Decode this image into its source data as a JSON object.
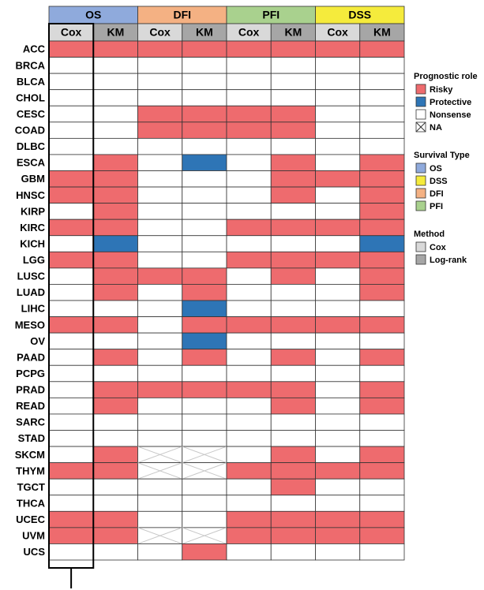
{
  "chart_data": {
    "type": "heatmap",
    "groups": [
      {
        "name": "OS",
        "color": "#8faadc"
      },
      {
        "name": "DFI",
        "color": "#f4b183"
      },
      {
        "name": "PFI",
        "color": "#a9d18e"
      },
      {
        "name": "DSS",
        "color": "#f5eb3c"
      }
    ],
    "methods": [
      {
        "name": "Cox",
        "color": "#d9d9d9"
      },
      {
        "name": "KM",
        "color": "#a6a6a6"
      }
    ],
    "rows": [
      "ACC",
      "BRCA",
      "BLCA",
      "CHOL",
      "CESC",
      "COAD",
      "DLBC",
      "ESCA",
      "GBM",
      "HNSC",
      "KIRP",
      "KIRC",
      "KICH",
      "LGG",
      "LUSC",
      "LUAD",
      "LIHC",
      "MESO",
      "OV",
      "PAAD",
      "PCPG",
      "PRAD",
      "READ",
      "SARC",
      "STAD",
      "SKCM",
      "THYM",
      "TGCT",
      "THCA",
      "UCEC",
      "UVM",
      "UCS"
    ],
    "cells": [
      [
        "Risky",
        "Risky",
        "Risky",
        "Risky",
        "Risky",
        "Risky",
        "Risky",
        "Risky"
      ],
      [
        "Nonsense",
        "Nonsense",
        "Nonsense",
        "Nonsense",
        "Nonsense",
        "Nonsense",
        "Nonsense",
        "Nonsense"
      ],
      [
        "Nonsense",
        "Nonsense",
        "Nonsense",
        "Nonsense",
        "Nonsense",
        "Nonsense",
        "Nonsense",
        "Nonsense"
      ],
      [
        "Nonsense",
        "Nonsense",
        "Nonsense",
        "Nonsense",
        "Nonsense",
        "Nonsense",
        "Nonsense",
        "Nonsense"
      ],
      [
        "Nonsense",
        "Nonsense",
        "Risky",
        "Risky",
        "Risky",
        "Risky",
        "Nonsense",
        "Nonsense"
      ],
      [
        "Nonsense",
        "Nonsense",
        "Risky",
        "Risky",
        "Risky",
        "Risky",
        "Nonsense",
        "Nonsense"
      ],
      [
        "Nonsense",
        "Nonsense",
        "Nonsense",
        "Nonsense",
        "Nonsense",
        "Nonsense",
        "Nonsense",
        "Nonsense"
      ],
      [
        "Nonsense",
        "Risky",
        "Nonsense",
        "Protective",
        "Nonsense",
        "Risky",
        "Nonsense",
        "Risky"
      ],
      [
        "Risky",
        "Risky",
        "Nonsense",
        "Nonsense",
        "Nonsense",
        "Risky",
        "Risky",
        "Risky"
      ],
      [
        "Risky",
        "Risky",
        "Nonsense",
        "Nonsense",
        "Nonsense",
        "Risky",
        "Nonsense",
        "Risky"
      ],
      [
        "Nonsense",
        "Risky",
        "Nonsense",
        "Nonsense",
        "Nonsense",
        "Nonsense",
        "Nonsense",
        "Risky"
      ],
      [
        "Risky",
        "Risky",
        "Nonsense",
        "Nonsense",
        "Risky",
        "Risky",
        "Risky",
        "Risky"
      ],
      [
        "Nonsense",
        "Protective",
        "Nonsense",
        "Nonsense",
        "Nonsense",
        "Nonsense",
        "Nonsense",
        "Protective"
      ],
      [
        "Risky",
        "Risky",
        "Nonsense",
        "Nonsense",
        "Risky",
        "Risky",
        "Risky",
        "Risky"
      ],
      [
        "Nonsense",
        "Risky",
        "Risky",
        "Risky",
        "Nonsense",
        "Risky",
        "Nonsense",
        "Risky"
      ],
      [
        "Nonsense",
        "Risky",
        "Nonsense",
        "Risky",
        "Nonsense",
        "Nonsense",
        "Nonsense",
        "Risky"
      ],
      [
        "Nonsense",
        "Nonsense",
        "Nonsense",
        "Protective",
        "Nonsense",
        "Nonsense",
        "Nonsense",
        "Nonsense"
      ],
      [
        "Risky",
        "Risky",
        "Nonsense",
        "Risky",
        "Risky",
        "Risky",
        "Risky",
        "Risky"
      ],
      [
        "Nonsense",
        "Nonsense",
        "Nonsense",
        "Protective",
        "Nonsense",
        "Nonsense",
        "Nonsense",
        "Nonsense"
      ],
      [
        "Nonsense",
        "Risky",
        "Nonsense",
        "Risky",
        "Nonsense",
        "Risky",
        "Nonsense",
        "Risky"
      ],
      [
        "Nonsense",
        "Nonsense",
        "Nonsense",
        "Nonsense",
        "Nonsense",
        "Nonsense",
        "Nonsense",
        "Nonsense"
      ],
      [
        "Nonsense",
        "Risky",
        "Risky",
        "Risky",
        "Risky",
        "Risky",
        "Nonsense",
        "Risky"
      ],
      [
        "Nonsense",
        "Risky",
        "Nonsense",
        "Nonsense",
        "Nonsense",
        "Risky",
        "Nonsense",
        "Risky"
      ],
      [
        "Nonsense",
        "Nonsense",
        "Nonsense",
        "Nonsense",
        "Nonsense",
        "Nonsense",
        "Nonsense",
        "Nonsense"
      ],
      [
        "Nonsense",
        "Nonsense",
        "Nonsense",
        "Nonsense",
        "Nonsense",
        "Nonsense",
        "Nonsense",
        "Nonsense"
      ],
      [
        "Nonsense",
        "Risky",
        "NA",
        "NA",
        "Nonsense",
        "Risky",
        "Nonsense",
        "Risky"
      ],
      [
        "Risky",
        "Risky",
        "NA",
        "NA",
        "Risky",
        "Risky",
        "Risky",
        "Risky"
      ],
      [
        "Nonsense",
        "Nonsense",
        "Nonsense",
        "Nonsense",
        "Nonsense",
        "Risky",
        "Nonsense",
        "Nonsense"
      ],
      [
        "Nonsense",
        "Nonsense",
        "Nonsense",
        "Nonsense",
        "Nonsense",
        "Nonsense",
        "Nonsense",
        "Nonsense"
      ],
      [
        "Risky",
        "Risky",
        "Nonsense",
        "Nonsense",
        "Risky",
        "Risky",
        "Risky",
        "Risky"
      ],
      [
        "Risky",
        "Risky",
        "NA",
        "NA",
        "Risky",
        "Risky",
        "Risky",
        "Risky"
      ],
      [
        "Nonsense",
        "Nonsense",
        "Nonsense",
        "Risky",
        "Nonsense",
        "Nonsense",
        "Nonsense",
        "Nonsense"
      ]
    ],
    "legend": [
      {
        "title": "Prognostic role",
        "items": [
          {
            "label": "Risky",
            "color": "#ee6b6e"
          },
          {
            "label": "Protective",
            "color": "#2e75b6"
          },
          {
            "label": "Nonsense",
            "color": "#ffffff"
          },
          {
            "label": "NA",
            "color": "#ffffff"
          }
        ]
      },
      {
        "title": "Survival Type",
        "items": [
          {
            "label": "OS",
            "color": "#8faadc"
          },
          {
            "label": "DSS",
            "color": "#f5eb3c"
          },
          {
            "label": "DFI",
            "color": "#f4b183"
          },
          {
            "label": "PFI",
            "color": "#a9d18e"
          }
        ]
      },
      {
        "title": "Method",
        "items": [
          {
            "label": "Cox",
            "color": "#d9d9d9"
          },
          {
            "label": "Log-rank",
            "color": "#a6a6a6"
          }
        ]
      }
    ]
  }
}
